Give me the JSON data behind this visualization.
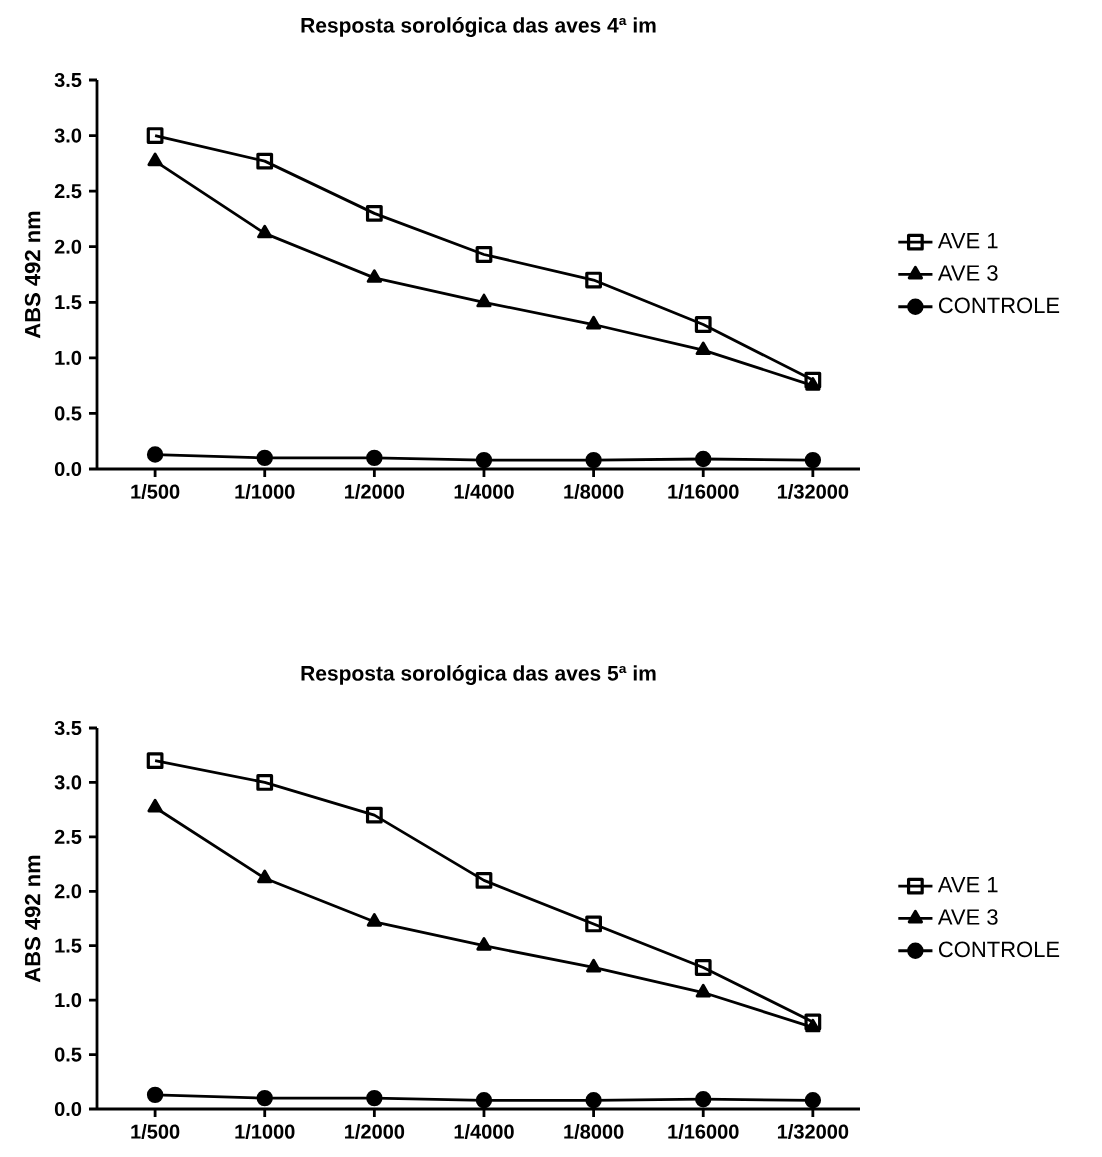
{
  "chart_data": [
    {
      "type": "line",
      "title": "Resposta sorológica das aves 4ª im",
      "ylabel": "ABS 492 nm",
      "categories": [
        "1/500",
        "1/1000",
        "1/2000",
        "1/4000",
        "1/8000",
        "1/16000",
        "1/32000"
      ],
      "ylim": [
        0,
        3.5
      ],
      "yticks": [
        {
          "value": 0,
          "label": "0.0"
        },
        0.5,
        {
          "value": 1,
          "label": "1.0"
        },
        1.5,
        {
          "value": 2,
          "label": "2.0"
        },
        2.5,
        {
          "value": 3,
          "label": "3.0"
        },
        3.5
      ],
      "legend": "right",
      "series": [
        {
          "name": "AVE 1",
          "color": "#000000",
          "marker": "square",
          "values": [
            3.0,
            2.77,
            2.3,
            1.93,
            1.7,
            1.3,
            0.8
          ]
        },
        {
          "name": "AVE 3",
          "color": "#000000",
          "marker": "triangle",
          "values": [
            2.77,
            2.12,
            1.72,
            1.5,
            1.3,
            1.07,
            0.75
          ]
        },
        {
          "name": "CONTROLE",
          "color": "#000000",
          "marker": "circle",
          "values": [
            0.13,
            0.1,
            0.1,
            0.08,
            0.08,
            0.09,
            0.08
          ]
        }
      ]
    },
    {
      "type": "line",
      "title": "Resposta sorológica das aves 5ª im",
      "ylabel": "ABS 492 nm",
      "categories": [
        "1/500",
        "1/1000",
        "1/2000",
        "1/4000",
        "1/8000",
        "1/16000",
        "1/32000"
      ],
      "ylim": [
        0,
        3.5
      ],
      "yticks": [
        {
          "value": 0,
          "label": "0.0"
        },
        0.5,
        {
          "value": 1,
          "label": "1.0"
        },
        1.5,
        {
          "value": 2,
          "label": "2.0"
        },
        2.5,
        {
          "value": 3,
          "label": "3.0"
        },
        3.5
      ],
      "legend": "right",
      "series": [
        {
          "name": "AVE 1",
          "color": "#000000",
          "marker": "square",
          "values": [
            3.2,
            3.0,
            2.7,
            2.1,
            1.7,
            1.3,
            0.8
          ]
        },
        {
          "name": "AVE 3",
          "color": "#000000",
          "marker": "triangle",
          "values": [
            2.77,
            2.12,
            1.72,
            1.5,
            1.3,
            1.07,
            0.75
          ]
        },
        {
          "name": "CONTROLE",
          "color": "#000000",
          "marker": "circle",
          "values": [
            0.13,
            0.1,
            0.1,
            0.08,
            0.08,
            0.09,
            0.08
          ]
        }
      ]
    }
  ]
}
